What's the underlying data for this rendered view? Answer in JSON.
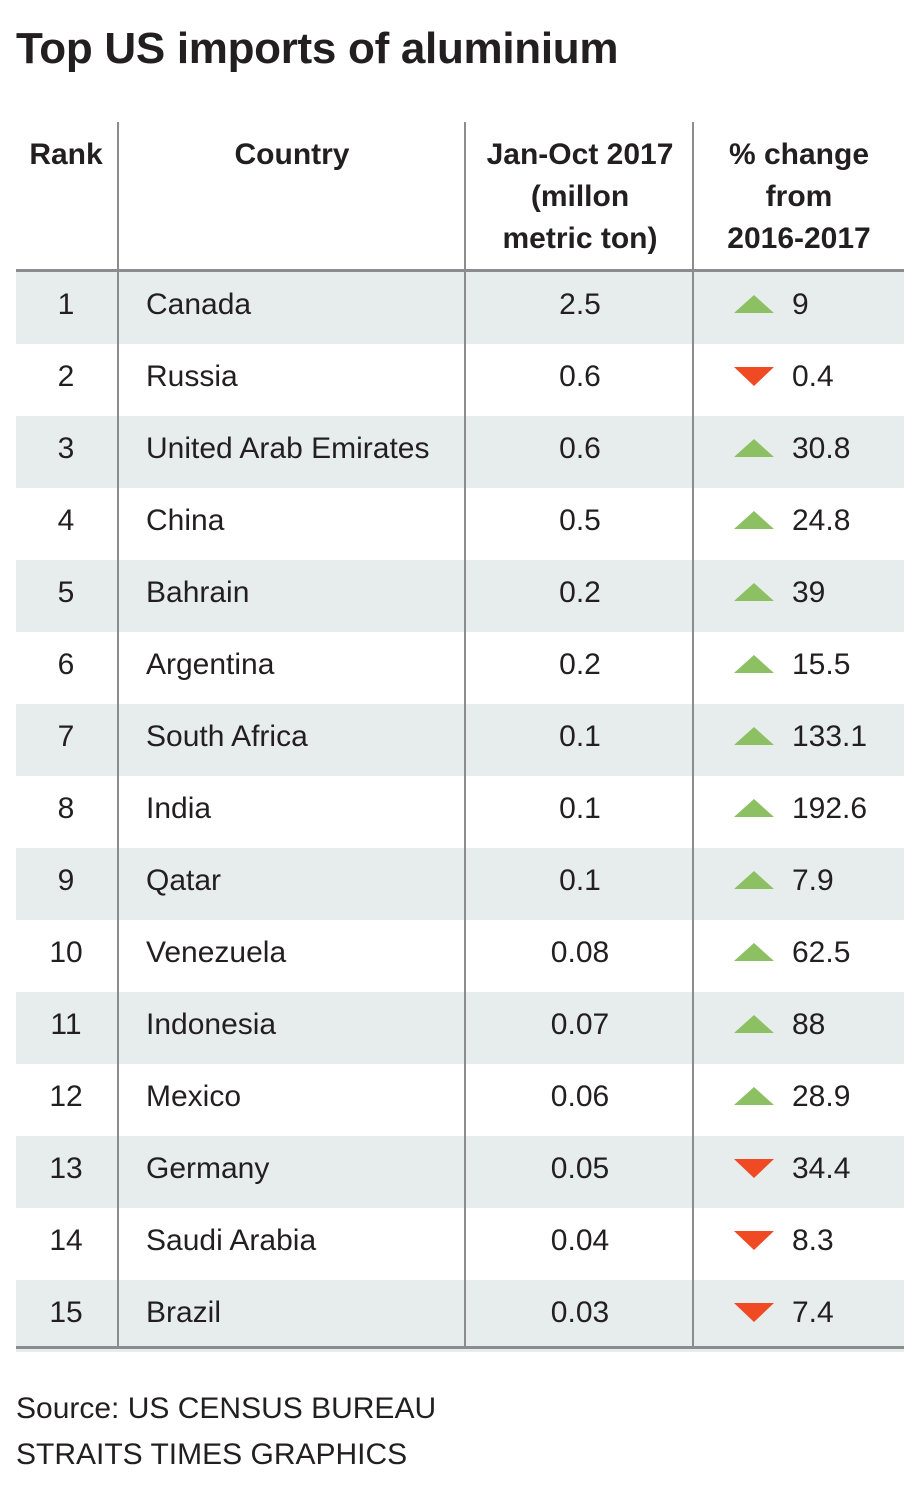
{
  "title": "Top US imports of aluminium",
  "colors": {
    "up": "#8dc063",
    "down": "#ef4a23",
    "shade": "#e7ecec",
    "rule": "#8a8c8e"
  },
  "header": {
    "rank": "Rank",
    "country": "Country",
    "imports_line1": "Jan-Oct 2017",
    "imports_line2": "(millon",
    "imports_line3": "metric ton)",
    "change_line1": "% change",
    "change_line2": "from",
    "change_line3": "2016-2017"
  },
  "chart_data": {
    "type": "table",
    "title": "Top US imports of aluminium",
    "columns": [
      "Rank",
      "Country",
      "Jan-Oct 2017 (millon metric ton)",
      "% change from 2016-2017"
    ],
    "rows": [
      {
        "rank": "1",
        "country": "Canada",
        "imports": "2.5",
        "direction": "up",
        "change": "9"
      },
      {
        "rank": "2",
        "country": "Russia",
        "imports": "0.6",
        "direction": "down",
        "change": "0.4"
      },
      {
        "rank": "3",
        "country": "United Arab Emirates",
        "imports": "0.6",
        "direction": "up",
        "change": "30.8"
      },
      {
        "rank": "4",
        "country": "China",
        "imports": "0.5",
        "direction": "up",
        "change": "24.8"
      },
      {
        "rank": "5",
        "country": "Bahrain",
        "imports": "0.2",
        "direction": "up",
        "change": "39"
      },
      {
        "rank": "6",
        "country": "Argentina",
        "imports": "0.2",
        "direction": "up",
        "change": "15.5"
      },
      {
        "rank": "7",
        "country": "South Africa",
        "imports": "0.1",
        "direction": "up",
        "change": "133.1"
      },
      {
        "rank": "8",
        "country": "India",
        "imports": "0.1",
        "direction": "up",
        "change": "192.6"
      },
      {
        "rank": "9",
        "country": "Qatar",
        "imports": "0.1",
        "direction": "up",
        "change": "7.9"
      },
      {
        "rank": "10",
        "country": "Venezuela",
        "imports": "0.08",
        "direction": "up",
        "change": "62.5"
      },
      {
        "rank": "11",
        "country": "Indonesia",
        "imports": "0.07",
        "direction": "up",
        "change": "88"
      },
      {
        "rank": "12",
        "country": "Mexico",
        "imports": "0.06",
        "direction": "up",
        "change": "28.9"
      },
      {
        "rank": "13",
        "country": "Germany",
        "imports": "0.05",
        "direction": "down",
        "change": "34.4"
      },
      {
        "rank": "14",
        "country": "Saudi Arabia",
        "imports": "0.04",
        "direction": "down",
        "change": "8.3"
      },
      {
        "rank": "15",
        "country": "Brazil",
        "imports": "0.03",
        "direction": "down",
        "change": "7.4"
      }
    ]
  },
  "source_line1": "Source: US CENSUS BUREAU",
  "source_line2": "STRAITS TIMES GRAPHICS"
}
